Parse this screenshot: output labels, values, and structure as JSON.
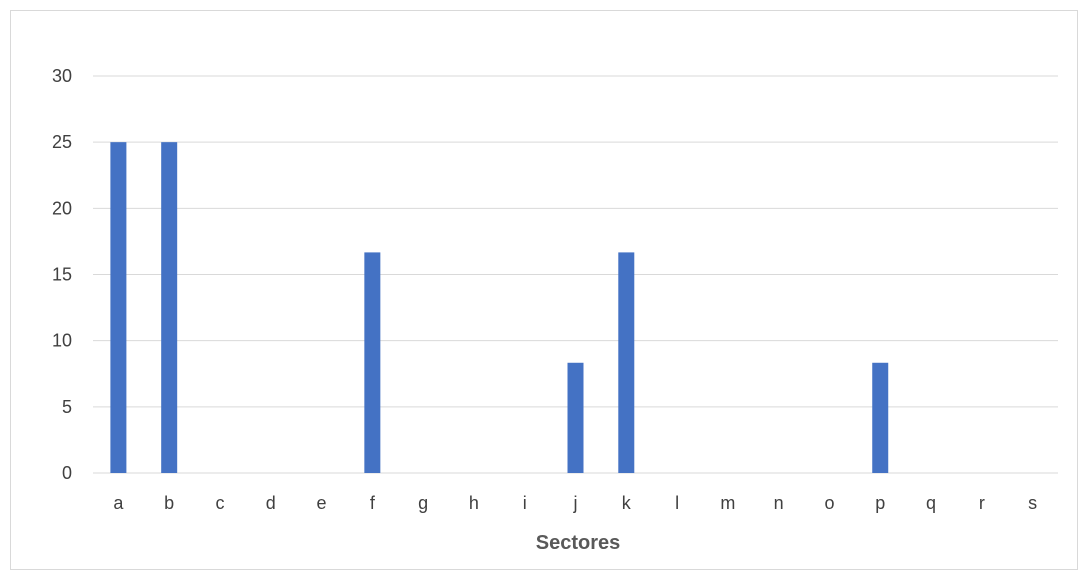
{
  "chart_data": {
    "type": "bar",
    "categories": [
      "a",
      "b",
      "c",
      "d",
      "e",
      "f",
      "g",
      "h",
      "i",
      "j",
      "k",
      "l",
      "m",
      "n",
      "o",
      "p",
      "q",
      "r",
      "s"
    ],
    "values": [
      25,
      25,
      0,
      0,
      0,
      16.67,
      0,
      0,
      0,
      8.33,
      16.67,
      0,
      0,
      0,
      0,
      8.33,
      0,
      0,
      0
    ],
    "yticks": [
      "0",
      "5",
      "10",
      "15",
      "20",
      "25",
      "30"
    ],
    "title": "",
    "xlabel": "Sectores",
    "ylabel": "",
    "ylim": [
      0,
      30
    ],
    "grid": true,
    "legend": "none",
    "bar_color": "#4472c4",
    "grid_color": "#d9d9d9"
  }
}
